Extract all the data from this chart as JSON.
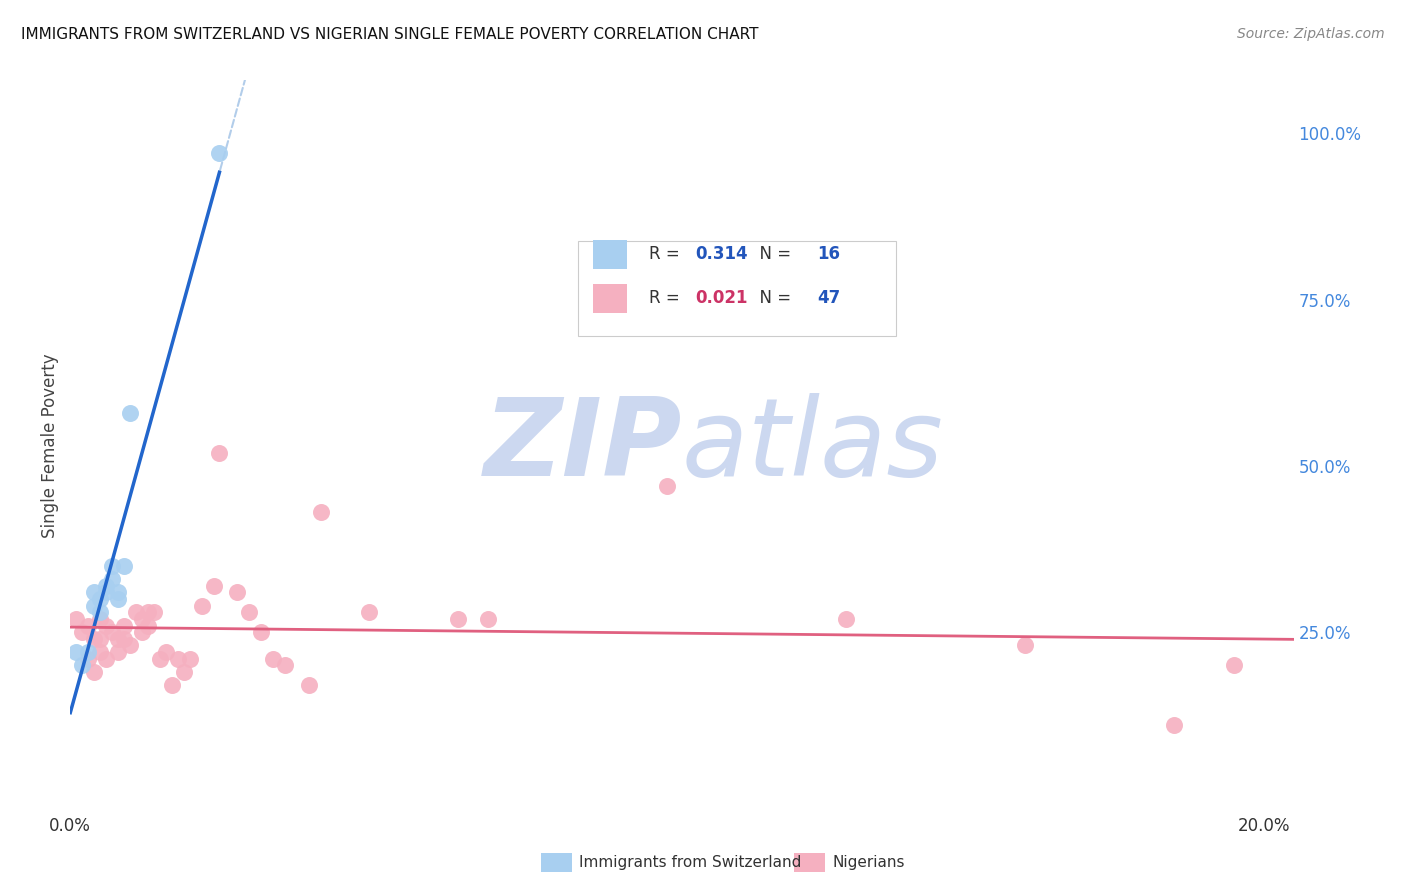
{
  "title": "IMMIGRANTS FROM SWITZERLAND VS NIGERIAN SINGLE FEMALE POVERTY CORRELATION CHART",
  "source": "Source: ZipAtlas.com",
  "ylabel": "Single Female Poverty",
  "xlim": [
    0.0,
    0.205
  ],
  "ylim": [
    -0.02,
    1.08
  ],
  "r_swiss": 0.314,
  "n_swiss": 16,
  "r_nigerian": 0.021,
  "n_nigerian": 47,
  "swiss_color": "#a8cff0",
  "nigerian_color": "#f5b0c0",
  "swiss_line_color": "#2266cc",
  "nigerian_line_color": "#e06080",
  "dashed_line_color": "#aac8e8",
  "background_color": "#ffffff",
  "grid_color": "#dde0ee",
  "watermark_color": "#ccd8f0",
  "swiss_x": [
    0.001,
    0.002,
    0.003,
    0.004,
    0.004,
    0.005,
    0.005,
    0.006,
    0.006,
    0.007,
    0.007,
    0.008,
    0.008,
    0.009,
    0.01,
    0.025
  ],
  "swiss_y": [
    0.22,
    0.2,
    0.22,
    0.29,
    0.31,
    0.3,
    0.28,
    0.32,
    0.31,
    0.33,
    0.35,
    0.3,
    0.31,
    0.35,
    0.58,
    0.97
  ],
  "nigerian_x": [
    0.001,
    0.002,
    0.003,
    0.003,
    0.004,
    0.004,
    0.005,
    0.005,
    0.005,
    0.006,
    0.006,
    0.007,
    0.008,
    0.008,
    0.009,
    0.009,
    0.01,
    0.011,
    0.012,
    0.012,
    0.013,
    0.013,
    0.014,
    0.015,
    0.016,
    0.017,
    0.018,
    0.019,
    0.02,
    0.022,
    0.024,
    0.025,
    0.028,
    0.03,
    0.032,
    0.034,
    0.036,
    0.04,
    0.042,
    0.05,
    0.065,
    0.07,
    0.1,
    0.13,
    0.16,
    0.185,
    0.195
  ],
  "nigerian_y": [
    0.27,
    0.25,
    0.26,
    0.21,
    0.24,
    0.19,
    0.27,
    0.24,
    0.22,
    0.26,
    0.21,
    0.25,
    0.22,
    0.24,
    0.26,
    0.24,
    0.23,
    0.28,
    0.27,
    0.25,
    0.28,
    0.26,
    0.28,
    0.21,
    0.22,
    0.17,
    0.21,
    0.19,
    0.21,
    0.29,
    0.32,
    0.52,
    0.31,
    0.28,
    0.25,
    0.21,
    0.2,
    0.17,
    0.43,
    0.28,
    0.27,
    0.27,
    0.47,
    0.27,
    0.23,
    0.11,
    0.2
  ],
  "legend_r_color": "#2255bb",
  "legend_n_color": "#2255bb",
  "legend_swiss_r_color": "#2255bb",
  "legend_nigerian_r_color": "#cc3366"
}
